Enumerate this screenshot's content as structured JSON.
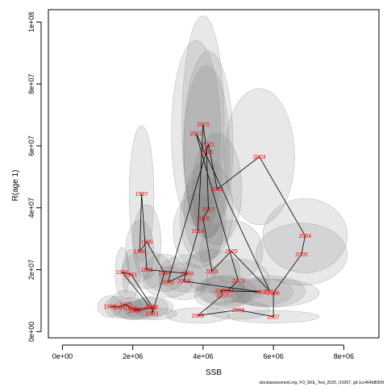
{
  "chart_data": {
    "type": "scatter",
    "xlabel": "SSB",
    "ylabel": "R(age 1)",
    "xlim": [
      -400000,
      9000000
    ],
    "ylim": [
      -2000000,
      104000000
    ],
    "x_ticks": [
      0,
      2000000,
      4000000,
      6000000,
      8000000
    ],
    "x_tick_labels": [
      "0e+00",
      "2e+06",
      "4e+06",
      "6e+06",
      "8e+06"
    ],
    "y_ticks": [
      0,
      20000000,
      40000000,
      60000000,
      80000000,
      100000000
    ],
    "y_tick_labels": [
      "0e+00",
      "2e+07",
      "4e+07",
      "6e+07",
      "8e+07",
      "1e+08"
    ],
    "series": [
      {
        "points": [
          {
            "year": "1983",
            "ssb": 1350000,
            "rec": 8100000,
            "rx": 350000,
            "ry": 3500000
          },
          {
            "year": "1984",
            "ssb": 1600000,
            "rec": 7900000,
            "rx": 400000,
            "ry": 3500000
          },
          {
            "year": "1985",
            "ssb": 1800000,
            "rec": 8800000,
            "rx": 450000,
            "ry": 4500000
          },
          {
            "year": "1986",
            "ssb": 1950000,
            "rec": 7500000,
            "rx": 500000,
            "ry": 3500000
          },
          {
            "year": "1987",
            "ssb": 2200000,
            "rec": 7200000,
            "rx": 450000,
            "ry": 3000000
          },
          {
            "year": "1988",
            "ssb": 2050000,
            "rec": 6800000,
            "rx": 450000,
            "ry": 3000000
          },
          {
            "year": "1989",
            "ssb": 2500000,
            "rec": 7800000,
            "rx": 500000,
            "ry": 3500000
          },
          {
            "year": "1990",
            "ssb": 1700000,
            "rec": 19200000,
            "rx": 200000,
            "ry": 8000000
          },
          {
            "year": "1991",
            "ssb": 1950000,
            "rec": 18500000,
            "rx": 250000,
            "ry": 8000000
          },
          {
            "year": "1992",
            "ssb": 2550000,
            "rec": 8000000,
            "rx": 600000,
            "ry": 3000000
          },
          {
            "year": "1993",
            "ssb": 2550000,
            "rec": 5800000,
            "rx": 700000,
            "ry": 2000000
          },
          {
            "year": "1994",
            "ssb": 2900000,
            "rec": 19000000,
            "rx": 600000,
            "ry": 6000000
          },
          {
            "year": "1995",
            "ssb": 2400000,
            "rec": 29000000,
            "rx": 400000,
            "ry": 12000000
          },
          {
            "year": "1996",
            "ssb": 2200000,
            "rec": 26000000,
            "rx": 400000,
            "ry": 10000000
          },
          {
            "year": "1997",
            "ssb": 2250000,
            "rec": 44500000,
            "rx": 350000,
            "ry": 22000000
          },
          {
            "year": "1998",
            "ssb": 2400000,
            "rec": 20000000,
            "rx": 700000,
            "ry": 6000000
          },
          {
            "year": "1999",
            "ssb": 3550000,
            "rec": 18800000,
            "rx": 800000,
            "ry": 6000000
          },
          {
            "year": "2000",
            "ssb": 3000000,
            "rec": 16000000,
            "rx": 700000,
            "ry": 5000000
          },
          {
            "year": "2001",
            "ssb": 4150000,
            "rec": 60500000,
            "rx": 700000,
            "ry": 30000000
          },
          {
            "year": "2002",
            "ssb": 4400000,
            "rec": 46000000,
            "rx": 700000,
            "ry": 18000000
          },
          {
            "year": "2003",
            "ssb": 5600000,
            "rec": 56500000,
            "rx": 1000000,
            "ry": 22000000
          },
          {
            "year": "2004",
            "ssb": 6900000,
            "rec": 31000000,
            "rx": 1200000,
            "ry": 12000000
          },
          {
            "year": "2005",
            "ssb": 6800000,
            "rec": 25000000,
            "rx": 1300000,
            "ry": 10000000
          },
          {
            "year": "2006",
            "ssb": 6000000,
            "rec": 12500000,
            "rx": 1300000,
            "ry": 4500000
          },
          {
            "year": "2007",
            "ssb": 6000000,
            "rec": 4800000,
            "rx": 1300000,
            "ry": 2000000
          },
          {
            "year": "2008",
            "ssb": 5000000,
            "rec": 7000000,
            "rx": 900000,
            "ry": 3000000
          },
          {
            "year": "2009",
            "ssb": 3850000,
            "rec": 5200000,
            "rx": 900000,
            "ry": 2500000
          },
          {
            "year": "2010",
            "ssb": 4550000,
            "rec": 11800000,
            "rx": 800000,
            "ry": 4500000
          },
          {
            "year": "2011",
            "ssb": 4500000,
            "rec": 13300000,
            "rx": 700000,
            "ry": 4500000
          },
          {
            "year": "2012",
            "ssb": 5650000,
            "rec": 12800000,
            "rx": 900000,
            "ry": 4500000
          },
          {
            "year": "2013",
            "ssb": 3450000,
            "rec": 16300000,
            "rx": 700000,
            "ry": 6000000
          },
          {
            "year": "2014",
            "ssb": 3850000,
            "rec": 32500000,
            "rx": 700000,
            "ry": 12000000
          },
          {
            "year": "2015",
            "ssb": 4000000,
            "rec": 67000000,
            "rx": 600000,
            "ry": 35000000
          },
          {
            "year": "2016",
            "ssb": 4100000,
            "rec": 58000000,
            "rx": 650000,
            "ry": 28000000
          },
          {
            "year": "2017",
            "ssb": 4150000,
            "rec": 39500000,
            "rx": 700000,
            "ry": 16000000
          },
          {
            "year": "2018",
            "ssb": 4000000,
            "rec": 36500000,
            "rx": 650000,
            "ry": 14000000
          },
          {
            "year": "2019",
            "ssb": 4250000,
            "rec": 19500000,
            "rx": 800000,
            "ry": 7000000
          },
          {
            "year": "2020",
            "ssb": 4800000,
            "rec": 26000000,
            "rx": 900000,
            "ry": 10000000
          },
          {
            "year": "2021",
            "ssb": 5900000,
            "rec": 13000000,
            "rx": 1000000,
            "ry": 5000000
          },
          {
            "year": "2022",
            "ssb": 3800000,
            "rec": 64000000,
            "rx": 700000,
            "ry": 30000000
          },
          {
            "year": "2023",
            "ssb": 5000000,
            "rec": 16500000,
            "rx": 900000,
            "ry": 7000000
          },
          {
            "year": "2024",
            "ssb": 4700000,
            "rec": 13200000,
            "rx": 800000,
            "ry": 5000000
          }
        ],
        "path_order": [
          "1983",
          "1984",
          "1985",
          "1986",
          "1987",
          "1988",
          "1989",
          "1990",
          "1991",
          "1992",
          "1993",
          "1994",
          "1995",
          "1996",
          "1997",
          "1998",
          "1999",
          "2000",
          "2001",
          "2002",
          "2003",
          "2004",
          "2005",
          "2006",
          "2007",
          "2008",
          "2009",
          "2010",
          "2011",
          "2012",
          "2013",
          "2014",
          "2015",
          "2016",
          "2017",
          "2018",
          "2019",
          "2020",
          "2021",
          "2022",
          "2023",
          "2024"
        ]
      }
    ],
    "grid": false,
    "legend": "none"
  },
  "footer": "stockassessment.org, FO_SKE_Test_2025, r19307, git:1cc464b8066f"
}
